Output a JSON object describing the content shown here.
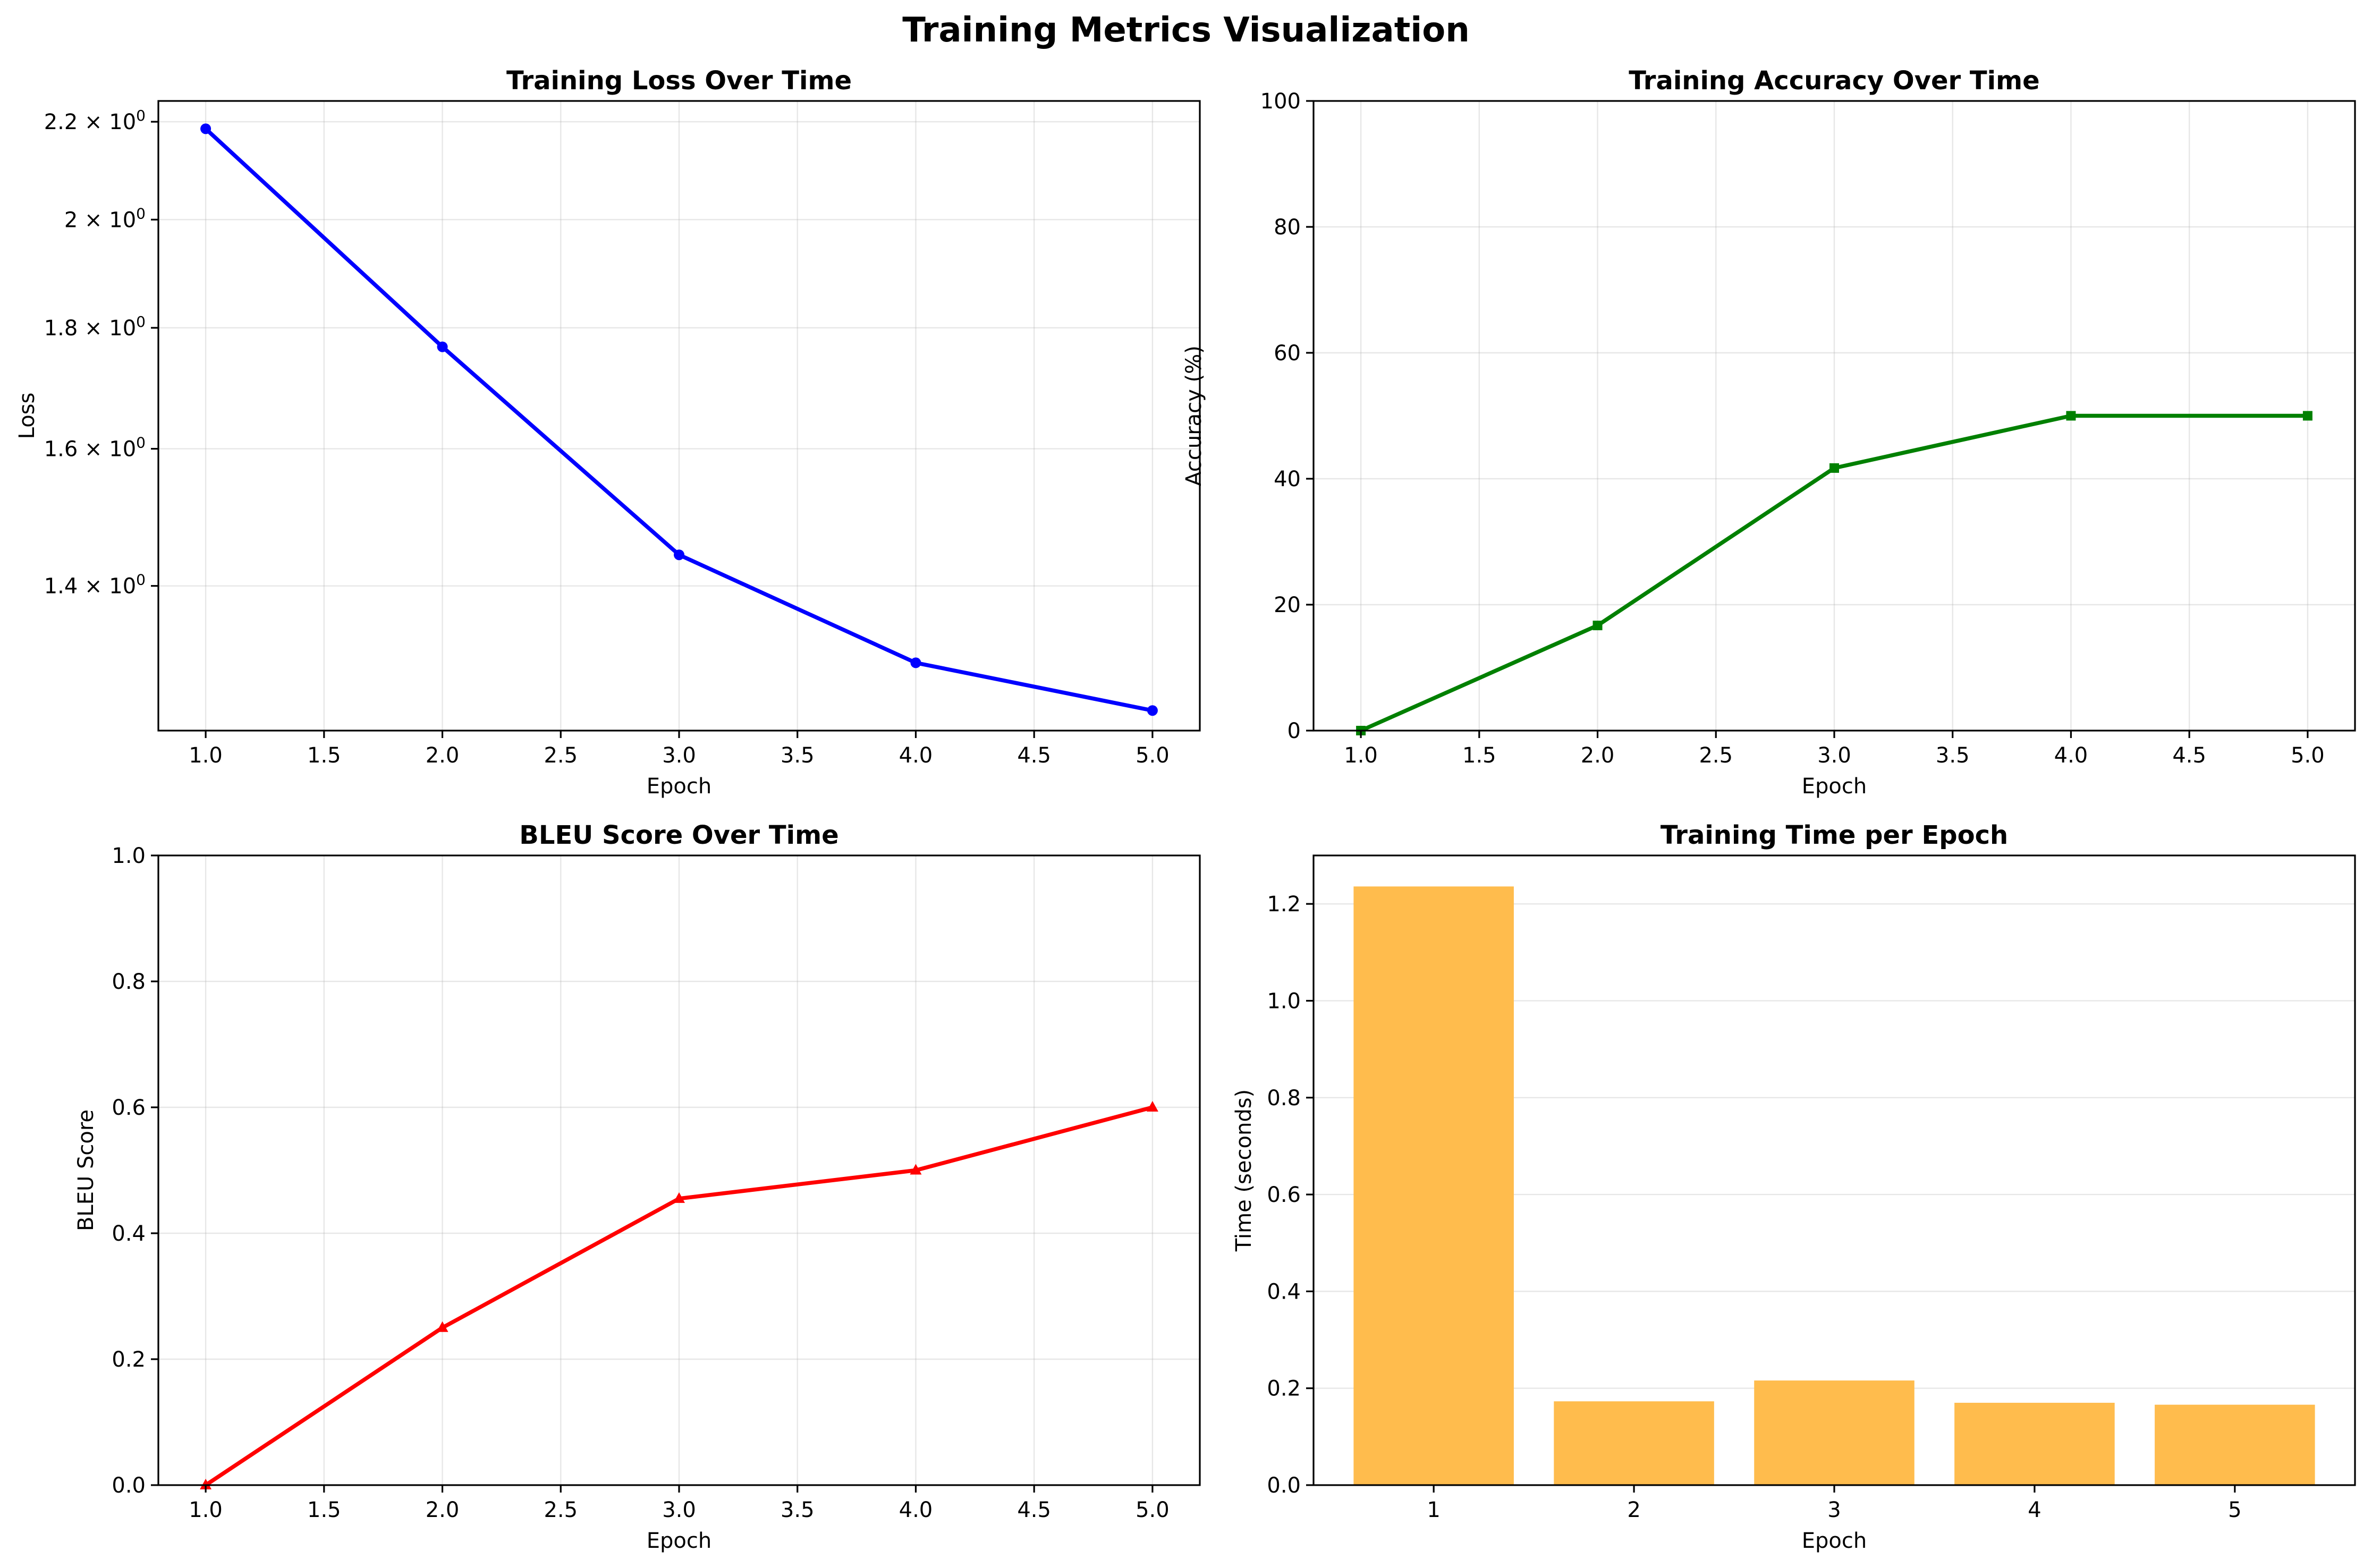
{
  "figure_title": "Training Metrics Visualization",
  "chart_data": [
    {
      "type": "line",
      "title": "Training Loss Over Time",
      "xlabel": "Epoch",
      "ylabel": "Loss",
      "yscale": "log",
      "xlim": [
        0.8,
        5.2
      ],
      "ylim": [
        1.216,
        2.245
      ],
      "xticks": [
        1.0,
        1.5,
        2.0,
        2.5,
        3.0,
        3.5,
        4.0,
        4.5,
        5.0
      ],
      "xtick_labels": [
        "1.0",
        "1.5",
        "2.0",
        "2.5",
        "3.0",
        "3.5",
        "4.0",
        "4.5",
        "5.0"
      ],
      "yticks": [
        1.4,
        1.6,
        1.8,
        2.0,
        2.2
      ],
      "ytick_labels": [
        {
          "base": "1.4 × 10",
          "exp": "0"
        },
        {
          "base": "1.6 × 10",
          "exp": "0"
        },
        {
          "base": "1.8 × 10",
          "exp": "0"
        },
        {
          "base": "2 × 10",
          "exp": "0"
        },
        {
          "base": "2.2 × 10",
          "exp": "0"
        }
      ],
      "grid": true,
      "series": [
        {
          "x": [
            1,
            2,
            3,
            4,
            5
          ],
          "values": [
            2.185,
            1.767,
            1.443,
            1.299,
            1.24
          ],
          "color": "#0000ff",
          "marker": "circle"
        }
      ]
    },
    {
      "type": "line",
      "title": "Training Accuracy Over Time",
      "xlabel": "Epoch",
      "ylabel": "Accuracy (%)",
      "xlim": [
        0.8,
        5.2
      ],
      "ylim": [
        0,
        100
      ],
      "xticks": [
        1.0,
        1.5,
        2.0,
        2.5,
        3.0,
        3.5,
        4.0,
        4.5,
        5.0
      ],
      "xtick_labels": [
        "1.0",
        "1.5",
        "2.0",
        "2.5",
        "3.0",
        "3.5",
        "4.0",
        "4.5",
        "5.0"
      ],
      "yticks": [
        0,
        20,
        40,
        60,
        80,
        100
      ],
      "ytick_labels": [
        "0",
        "20",
        "40",
        "60",
        "80",
        "100"
      ],
      "grid": true,
      "series": [
        {
          "x": [
            1,
            2,
            3,
            4,
            5
          ],
          "values": [
            0,
            16.7,
            41.7,
            50.0,
            50.0
          ],
          "color": "#008000",
          "marker": "square"
        }
      ]
    },
    {
      "type": "line",
      "title": "BLEU Score Over Time",
      "xlabel": "Epoch",
      "ylabel": "BLEU Score",
      "xlim": [
        0.8,
        5.2
      ],
      "ylim": [
        0,
        1
      ],
      "xticks": [
        1.0,
        1.5,
        2.0,
        2.5,
        3.0,
        3.5,
        4.0,
        4.5,
        5.0
      ],
      "xtick_labels": [
        "1.0",
        "1.5",
        "2.0",
        "2.5",
        "3.0",
        "3.5",
        "4.0",
        "4.5",
        "5.0"
      ],
      "yticks": [
        0,
        0.2,
        0.4,
        0.6,
        0.8,
        1.0
      ],
      "ytick_labels": [
        "0.0",
        "0.2",
        "0.4",
        "0.6",
        "0.8",
        "1.0"
      ],
      "grid": true,
      "series": [
        {
          "x": [
            1,
            2,
            3,
            4,
            5
          ],
          "values": [
            0.0,
            0.25,
            0.455,
            0.5,
            0.6
          ],
          "color": "#ff0000",
          "marker": "triangle"
        }
      ]
    },
    {
      "type": "bar",
      "title": "Training Time per Epoch",
      "xlabel": "Epoch",
      "ylabel": "Time (seconds)",
      "categories": [
        "1",
        "2",
        "3",
        "4",
        "5"
      ],
      "xlim": [
        0.4,
        5.6
      ],
      "ylim": [
        0,
        1.3
      ],
      "yticks": [
        0,
        0.2,
        0.4,
        0.6,
        0.8,
        1.0,
        1.2
      ],
      "ytick_labels": [
        "0.0",
        "0.2",
        "0.4",
        "0.6",
        "0.8",
        "1.0",
        "1.2"
      ],
      "grid": true,
      "series": [
        {
          "values": [
            1.236,
            0.173,
            0.216,
            0.17,
            0.166
          ],
          "color": "#ffbc4d"
        }
      ]
    }
  ]
}
